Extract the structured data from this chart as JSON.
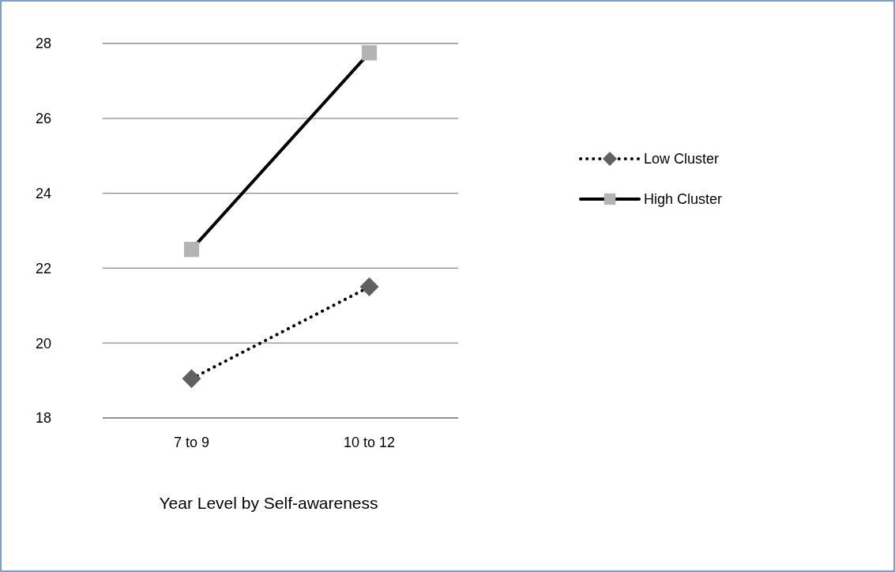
{
  "chart_data": {
    "type": "line",
    "xlabel": "Year Level by Self-awareness",
    "categories": [
      "7 to 9",
      "10 to 12"
    ],
    "series": [
      {
        "name": "Low Cluster",
        "color": "#000000",
        "colors": [
          "#606060",
          "#606060"
        ],
        "values": [
          19.05,
          21.5
        ],
        "marker": "diamond",
        "line_style": "dotted"
      },
      {
        "name": "High Cluster",
        "color": "#000000",
        "colors": [
          "#b3b3b3",
          "#b3b3b3"
        ],
        "values": [
          22.5,
          27.75
        ],
        "marker": "square",
        "line_style": "solid"
      }
    ],
    "ylim": [
      18,
      28
    ],
    "yticks": [
      18,
      20,
      22,
      24,
      26,
      28
    ],
    "grid": "y",
    "legend": "right"
  }
}
